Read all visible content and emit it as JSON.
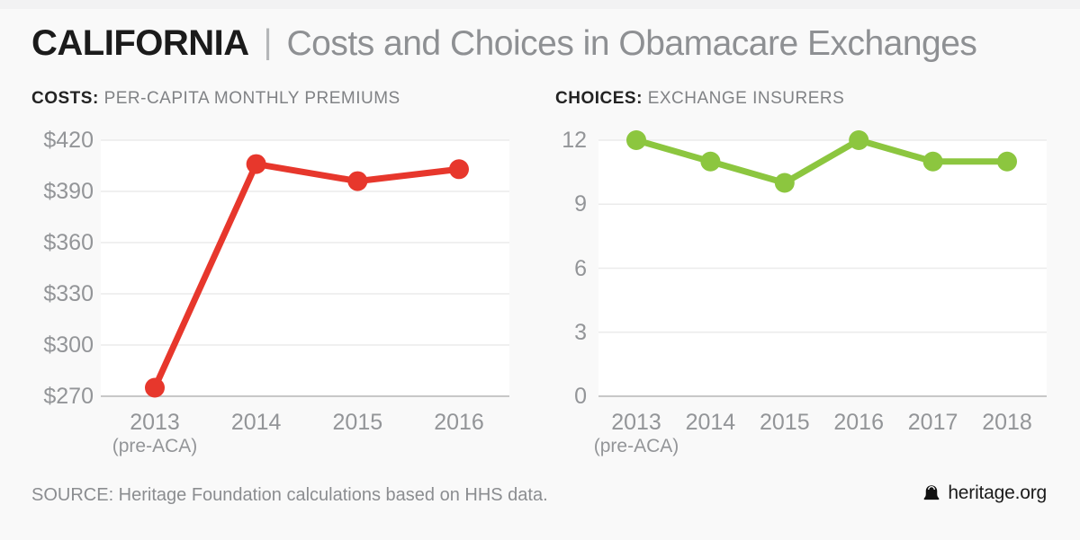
{
  "page": {
    "title": {
      "state": "CALIFORNIA",
      "divider": "|",
      "subtitle": "Costs and Choices in Obamacare Exchanges"
    },
    "footer": {
      "source": "SOURCE: Heritage Foundation calculations based on HHS data.",
      "brand": "heritage.org"
    },
    "colors": {
      "costs_line": "#e7372c",
      "choices_line": "#8cc63f",
      "grid": "#ebebeb",
      "axis": "#c8c8c8",
      "plot_background": "#ffffff",
      "page_background": "#f9f9f9",
      "axis_label_gray": "#939598",
      "heading_gray": "#808285",
      "heading_black": "#232323"
    }
  },
  "chart_data": [
    {
      "type": "line",
      "id": "costs",
      "heading_bold": "COSTS:",
      "heading_rest": "PER-CAPITA MONTHLY PREMIUMS",
      "series": [
        {
          "name": "Per-capita monthly premium (dollars)",
          "values": [
            275,
            406,
            396,
            403
          ]
        }
      ],
      "categories": [
        {
          "label": "2013",
          "sublabel": "(pre-ACA)"
        },
        {
          "label": "2014",
          "sublabel": ""
        },
        {
          "label": "2015",
          "sublabel": ""
        },
        {
          "label": "2016",
          "sublabel": ""
        }
      ],
      "ylim": [
        270,
        420
      ],
      "yticks": [
        420,
        390,
        360,
        330,
        300,
        270
      ],
      "ytick_prefix": "$",
      "color": "#e7372c",
      "grid": true,
      "legend": "none"
    },
    {
      "type": "line",
      "id": "choices",
      "heading_bold": "CHOICES:",
      "heading_rest": "EXCHANGE INSURERS",
      "series": [
        {
          "name": "Exchange insurers (count)",
          "values": [
            12,
            11,
            10,
            12,
            11,
            11
          ]
        }
      ],
      "categories": [
        {
          "label": "2013",
          "sublabel": "(pre-ACA)"
        },
        {
          "label": "2014",
          "sublabel": ""
        },
        {
          "label": "2015",
          "sublabel": ""
        },
        {
          "label": "2016",
          "sublabel": ""
        },
        {
          "label": "2017",
          "sublabel": ""
        },
        {
          "label": "2018",
          "sublabel": ""
        }
      ],
      "ylim": [
        0,
        12
      ],
      "yticks": [
        12,
        9,
        6,
        3,
        0
      ],
      "ytick_prefix": "",
      "color": "#8cc63f",
      "grid": true,
      "legend": "none"
    }
  ]
}
